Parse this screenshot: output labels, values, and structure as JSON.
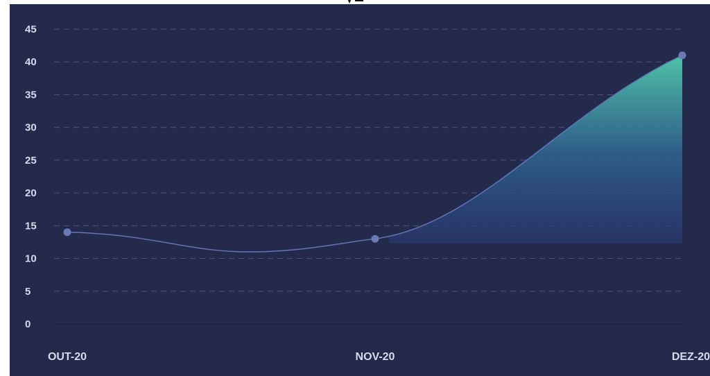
{
  "colors": {
    "background": "#232a4c",
    "line": "#6476b8",
    "point": "#6a7ab8",
    "grid": "#4d5580",
    "tick_text": "#d7dbee",
    "area_top": "#4fc1a6",
    "area_bottom": "#27336a"
  },
  "chart_data": {
    "type": "area",
    "title": "",
    "xlabel": "",
    "ylabel": "",
    "categories": [
      "OUT-20",
      "NOV-20",
      "DEZ-20"
    ],
    "series": [
      {
        "values": [
          14,
          13,
          41
        ]
      }
    ],
    "ylim": [
      0,
      45
    ],
    "yticks": [
      "0",
      "5",
      "10",
      "15",
      "20",
      "25",
      "30",
      "35",
      "40",
      "45"
    ],
    "grid": true,
    "grid_style": "dashed horizontal",
    "legend": "none",
    "curve": "smooth",
    "area_fill": "gradient below line, visible from NOV-20 onward"
  }
}
